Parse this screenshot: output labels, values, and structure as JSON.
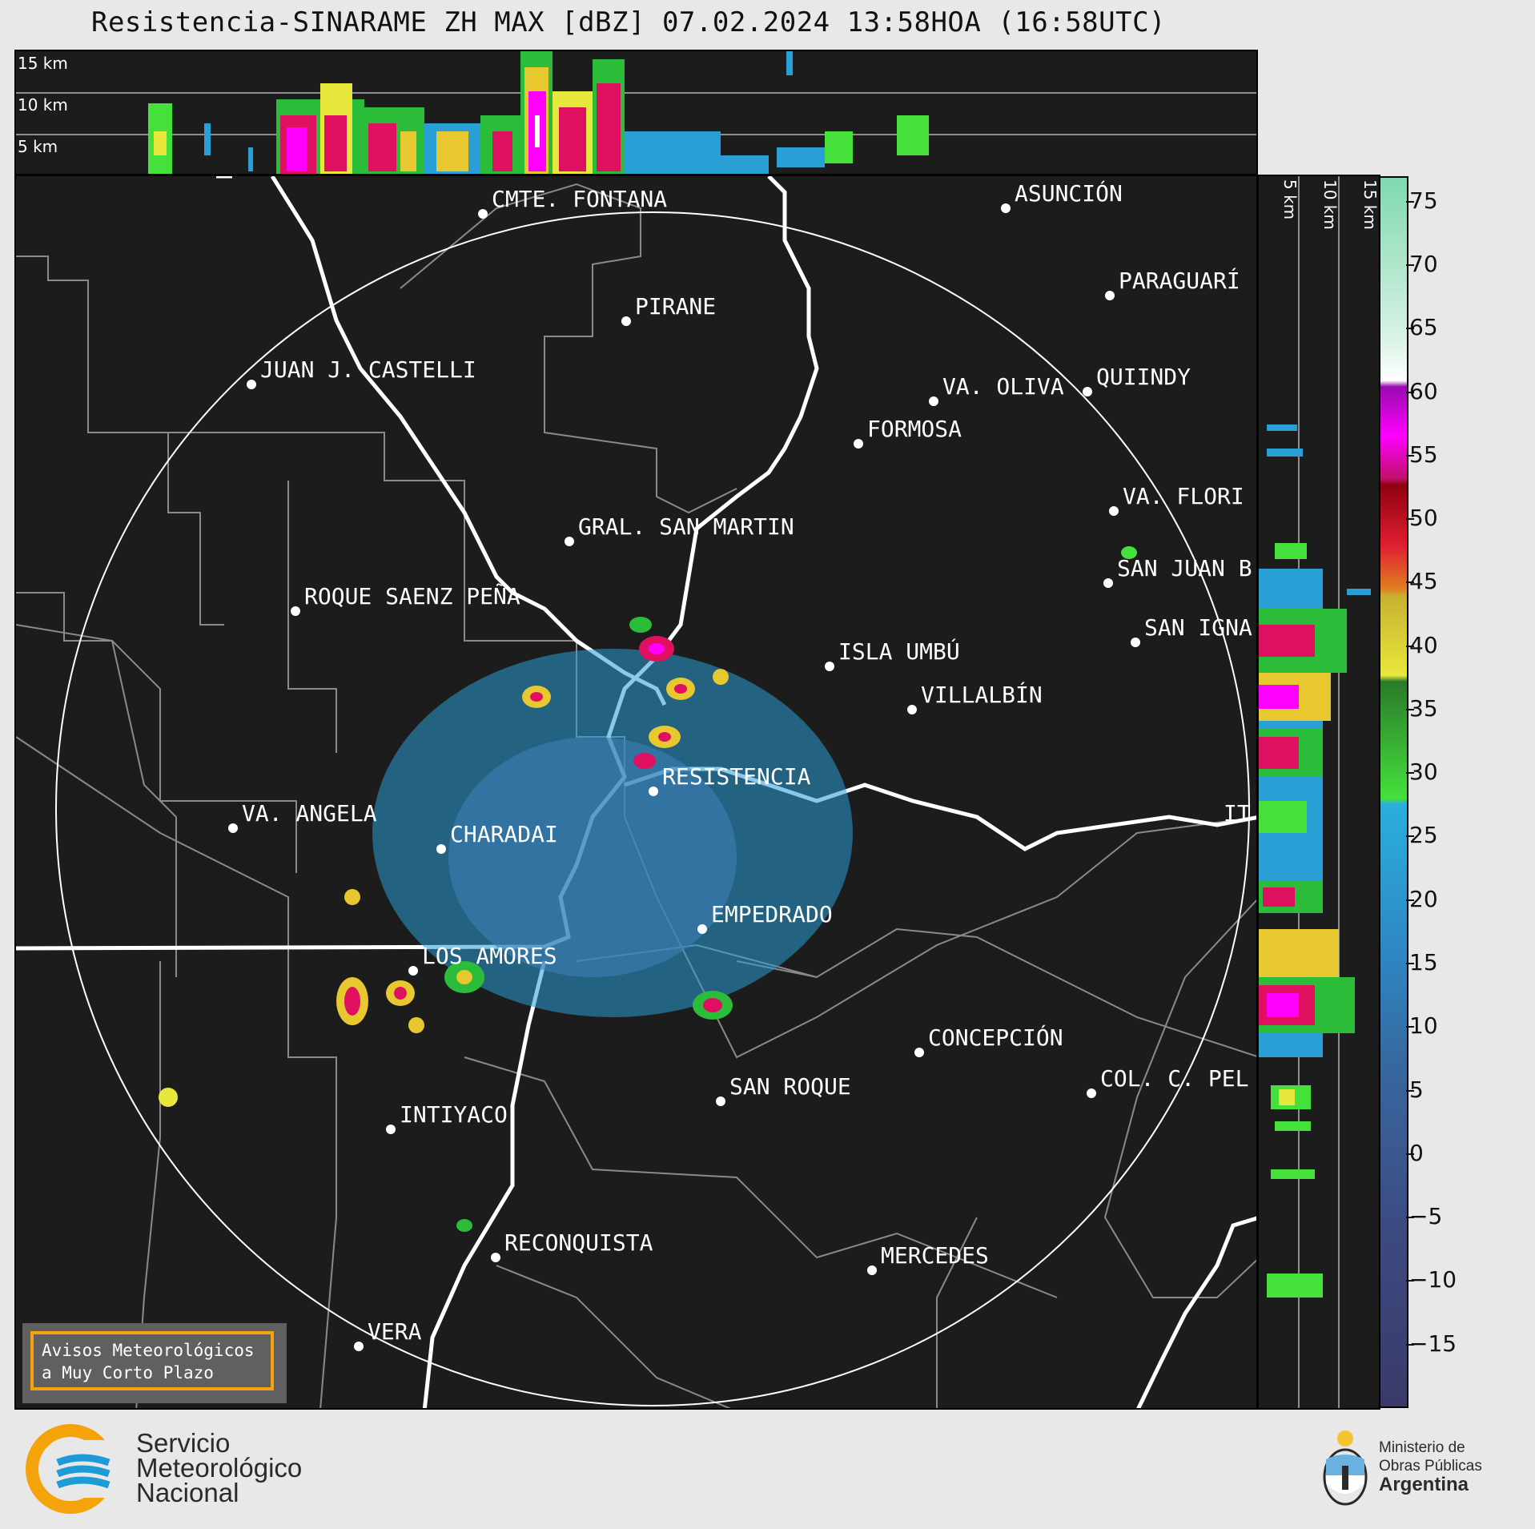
{
  "title": "Resistencia-SINARAME ZH MAX [dBZ] 07.02.2024 13:58HOA (16:58UTC)",
  "top_altitude_labels": [
    "15 km",
    "10 km",
    "5 km"
  ],
  "side_altitude_labels": [
    "5 km",
    "10 km",
    "15 km"
  ],
  "colorbar": {
    "ticks": [
      "75",
      "70",
      "65",
      "60",
      "55",
      "50",
      "45",
      "40",
      "35",
      "30",
      "25",
      "20",
      "15",
      "10",
      "5",
      "0",
      "−5",
      "−10",
      "−15"
    ],
    "range_dbz": [
      -20,
      77
    ]
  },
  "cities": [
    {
      "name": "CMTE. FONTANA"
    },
    {
      "name": "ASUNCIÓN"
    },
    {
      "name": "PARAGUARÍ"
    },
    {
      "name": "PIRANE"
    },
    {
      "name": "JUAN J. CASTELLI"
    },
    {
      "name": "VA. OLIVA"
    },
    {
      "name": "QUIINDY"
    },
    {
      "name": "FORMOSA"
    },
    {
      "name": "VA. FLORI"
    },
    {
      "name": "GRAL. SAN MARTIN"
    },
    {
      "name": "SAN JUAN B"
    },
    {
      "name": "ROQUE SAENZ PEÑA"
    },
    {
      "name": "SAN IGNA"
    },
    {
      "name": "ISLA UMBÚ"
    },
    {
      "name": "VILLALBÍN"
    },
    {
      "name": "RESISTENCIA"
    },
    {
      "name": "VA. ANGELA"
    },
    {
      "name": "CHARADAI"
    },
    {
      "name": "IT"
    },
    {
      "name": "EMPEDRADO"
    },
    {
      "name": "LOS AMORES"
    },
    {
      "name": "CONCEPCIÓN"
    },
    {
      "name": "SAN ROQUE"
    },
    {
      "name": "COL. C. PEL"
    },
    {
      "name": "INTIYACO"
    },
    {
      "name": "RECONQUISTA"
    },
    {
      "name": "MERCEDES"
    },
    {
      "name": "VERA"
    }
  ],
  "notice": {
    "line1": "Avisos Meteorológicos",
    "line2": "a Muy Corto Plazo"
  },
  "smn": {
    "line1": "Servicio",
    "line2": "Meteorológico",
    "line3": "Nacional"
  },
  "ministry": {
    "line1": "Ministerio de",
    "line2": "Obras Públicas",
    "line3": "Argentina"
  },
  "colors": {
    "panel_bg": "#1c1c1c",
    "notice_border": "#f5a30a",
    "smn_orange": "#f5a30a",
    "smn_blue": "#1e9ad6"
  }
}
